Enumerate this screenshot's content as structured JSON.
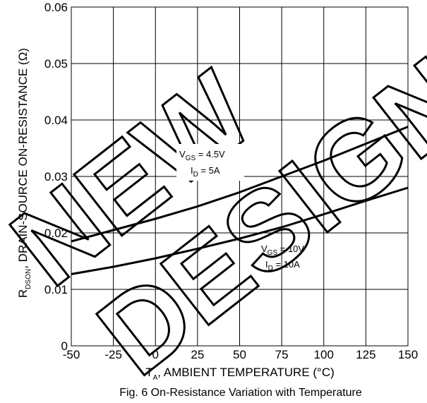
{
  "chart_data": {
    "type": "line",
    "caption": "Fig. 6 On-Resistance Variation with Temperature",
    "xlabel_main": "T",
    "xlabel_sub": "A",
    "xlabel_rest": ", AMBIENT TEMPERATURE (°C)",
    "ylabel_main": "R",
    "ylabel_sub": "DSON",
    "ylabel_rest": ", DRAIN-SOURCE ON-RESISTANCE (Ω)",
    "xlim": [
      -50,
      150
    ],
    "ylim": [
      0,
      0.06
    ],
    "x_ticks": [
      -50,
      -25,
      0,
      25,
      50,
      75,
      100,
      125,
      150
    ],
    "x_tick_labels": [
      "-50",
      "-25",
      "0",
      "25",
      "50",
      "75",
      "100",
      "125",
      "150"
    ],
    "y_ticks": [
      0,
      0.01,
      0.02,
      0.03,
      0.04,
      0.05,
      0.06
    ],
    "y_tick_labels": [
      "0",
      "0.01",
      "0.02",
      "0.03",
      "0.04",
      "0.05",
      "0.06"
    ],
    "grid": true,
    "series": [
      {
        "label_line1_main": "V",
        "label_line1_sub": "GS",
        "label_line1_rest": " = 4.5V",
        "label_line2_main": "I",
        "label_line2_sub": "D",
        "label_line2_rest": " = 5A",
        "x": [
          -50,
          -25,
          0,
          25,
          50,
          75,
          100,
          125,
          150
        ],
        "y": [
          0.0185,
          0.0205,
          0.0225,
          0.0247,
          0.0272,
          0.03,
          0.0328,
          0.0358,
          0.0388
        ]
      },
      {
        "label_line1_main": "V",
        "label_line1_sub": "GS",
        "label_line1_rest": " = 10V",
        "label_line2_main": "I",
        "label_line2_sub": "D",
        "label_line2_rest": " = 10A",
        "x": [
          -50,
          -25,
          0,
          25,
          50,
          75,
          100,
          125,
          150
        ],
        "y": [
          0.0127,
          0.014,
          0.0155,
          0.0172,
          0.019,
          0.021,
          0.0233,
          0.0257,
          0.028
        ]
      }
    ],
    "watermark_lines": [
      "NEW",
      "DESIGN"
    ]
  }
}
